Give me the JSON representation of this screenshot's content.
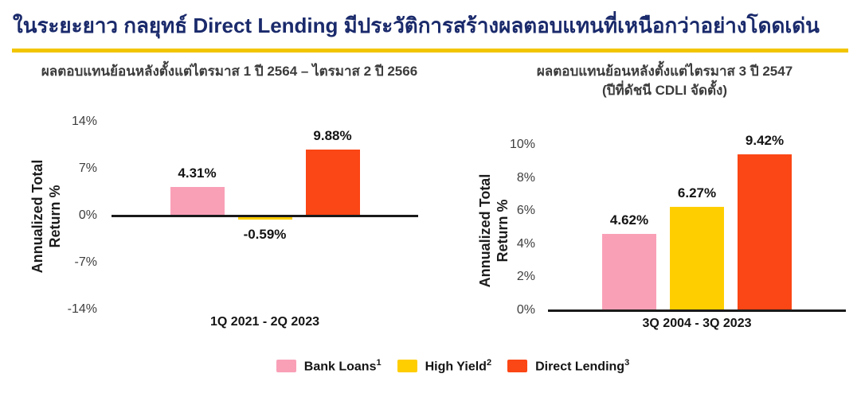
{
  "page": {
    "title": "ในระยะยาว กลยุทธ์ Direct Lending มีประวัติการสร้างผลตอบแทนที่เหนือกว่าอย่างโดดเด่น",
    "title_color": "#1A2A6B",
    "rule_color": "#F2C500",
    "background": "#FFFFFF"
  },
  "legend": {
    "items": [
      {
        "label": "Bank Loans",
        "superscript": "1",
        "color": "#F9A0B7"
      },
      {
        "label": "High Yield",
        "superscript": "2",
        "color": "#FFCE00"
      },
      {
        "label": "Direct Lending",
        "superscript": "3",
        "color": "#FB4615"
      }
    ]
  },
  "chart_data": [
    {
      "type": "bar",
      "title": "ผลตอบแทนย้อนหลังตั้งแต่ไตรมาส 1 ปี 2564 – ไตรมาส 2 ปี 2566",
      "subtitle": "",
      "categories": [
        "Bank Loans",
        "High Yield",
        "Direct Lending"
      ],
      "values": [
        4.31,
        -0.59,
        9.88
      ],
      "bar_labels": [
        "4.31%",
        "-0.59%",
        "9.88%"
      ],
      "bar_colors": [
        "#F9A0B7",
        "#FFCE00",
        "#FB4615"
      ],
      "xlabel": "1Q 2021 - 2Q 2023",
      "ylabel": "Annualized Total Return %",
      "ylim": [
        -14,
        14
      ],
      "yticks": [
        "14%",
        "7%",
        "0%",
        "-7%",
        "-14%"
      ],
      "ytick_values": [
        14,
        7,
        0,
        -7,
        -14
      ],
      "grid": false,
      "legend_position": "bottom"
    },
    {
      "type": "bar",
      "title": "ผลตอบแทนย้อนหลังตั้งแต่ไตรมาส 3 ปี 2547",
      "subtitle": "(ปีที่ดัชนี CDLI จัดตั้ง)",
      "categories": [
        "Bank Loans",
        "High Yield",
        "Direct Lending"
      ],
      "values": [
        4.62,
        6.27,
        9.42
      ],
      "bar_labels": [
        "4.62%",
        "6.27%",
        "9.42%"
      ],
      "bar_colors": [
        "#F9A0B7",
        "#FFCE00",
        "#FB4615"
      ],
      "xlabel": "3Q 2004 - 3Q 2023",
      "ylabel": "Annualized Total Return %",
      "ylim": [
        0,
        10
      ],
      "yticks": [
        "10%",
        "8%",
        "6%",
        "4%",
        "2%",
        "0%"
      ],
      "ytick_values": [
        10,
        8,
        6,
        4,
        2,
        0
      ],
      "grid": false,
      "legend_position": "bottom"
    }
  ]
}
